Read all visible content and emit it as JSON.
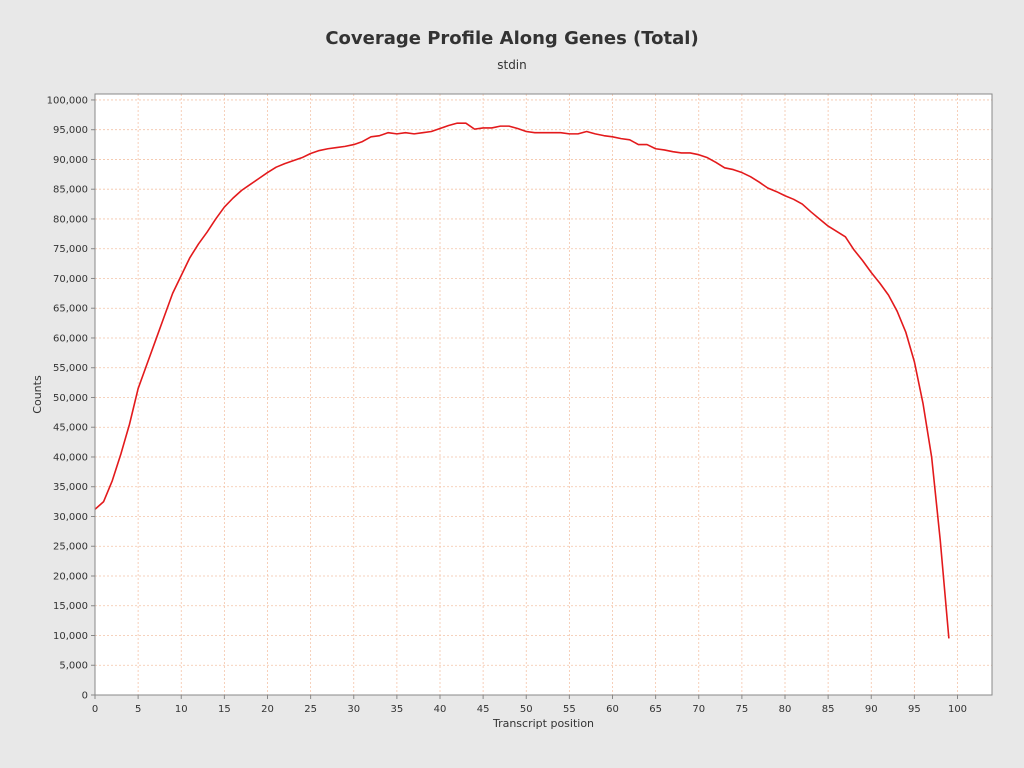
{
  "chart_data": {
    "type": "line",
    "title": "Coverage Profile Along Genes (Total)",
    "subtitle": "stdin",
    "xlabel": "Transcript position",
    "ylabel": "Counts",
    "xlim": [
      0,
      104
    ],
    "ylim": [
      0,
      101000
    ],
    "x_ticks": [
      0,
      5,
      10,
      15,
      20,
      25,
      30,
      35,
      40,
      45,
      50,
      55,
      60,
      65,
      70,
      75,
      80,
      85,
      90,
      95,
      100
    ],
    "y_ticks": [
      0,
      5000,
      10000,
      15000,
      20000,
      25000,
      30000,
      35000,
      40000,
      45000,
      50000,
      55000,
      60000,
      65000,
      70000,
      75000,
      80000,
      85000,
      90000,
      95000,
      100000
    ],
    "y_tick_labels": [
      "0",
      "5,000",
      "10,000",
      "15,000",
      "20,000",
      "25,000",
      "30,000",
      "35,000",
      "40,000",
      "45,000",
      "50,000",
      "55,000",
      "60,000",
      "65,000",
      "70,000",
      "75,000",
      "80,000",
      "85,000",
      "90,000",
      "95,000",
      "100,000"
    ],
    "grid": true,
    "colors": {
      "background": "#e8e8e8",
      "plot_background": "#ffffff",
      "grid": "#f4c4a8",
      "line": "#e31a1c",
      "axis": "#888888"
    },
    "series": [
      {
        "x": [
          0,
          1,
          2,
          3,
          4,
          5,
          6,
          7,
          8,
          9,
          10,
          11,
          12,
          13,
          14,
          15,
          16,
          17,
          18,
          19,
          20,
          21,
          22,
          23,
          24,
          25,
          26,
          27,
          28,
          29,
          30,
          31,
          32,
          33,
          34,
          35,
          36,
          37,
          38,
          39,
          40,
          41,
          42,
          43,
          44,
          45,
          46,
          47,
          48,
          49,
          50,
          51,
          52,
          53,
          54,
          55,
          56,
          57,
          58,
          59,
          60,
          61,
          62,
          63,
          64,
          65,
          66,
          67,
          68,
          69,
          70,
          71,
          72,
          73,
          74,
          75,
          76,
          77,
          78,
          79,
          80,
          81,
          82,
          83,
          84,
          85,
          86,
          87,
          88,
          89,
          90,
          91,
          92,
          93,
          94,
          95,
          96,
          97,
          98,
          99
        ],
        "values": [
          31200,
          32500,
          36000,
          40500,
          45500,
          51500,
          55500,
          59500,
          63500,
          67500,
          70500,
          73500,
          75800,
          77800,
          80000,
          82000,
          83500,
          84800,
          85800,
          86800,
          87800,
          88700,
          89300,
          89800,
          90300,
          91000,
          91500,
          91800,
          92000,
          92200,
          92500,
          93000,
          93800,
          94000,
          94500,
          94300,
          94500,
          94300,
          94500,
          94700,
          95200,
          95700,
          96100,
          96100,
          95100,
          95300,
          95300,
          95600,
          95600,
          95200,
          94700,
          94500,
          94500,
          94500,
          94500,
          94300,
          94300,
          94700,
          94300,
          94000,
          93800,
          93500,
          93300,
          92500,
          92500,
          91800,
          91600,
          91300,
          91100,
          91100,
          90800,
          90300,
          89500,
          88600,
          88300,
          87800,
          87100,
          86200,
          85200,
          84600,
          83900,
          83300,
          82500,
          81200,
          80000,
          78800,
          77900,
          77000,
          74800,
          73000,
          71000,
          69200,
          67200,
          64500,
          61000,
          56000,
          49000,
          40000,
          26000,
          9500
        ]
      }
    ]
  }
}
